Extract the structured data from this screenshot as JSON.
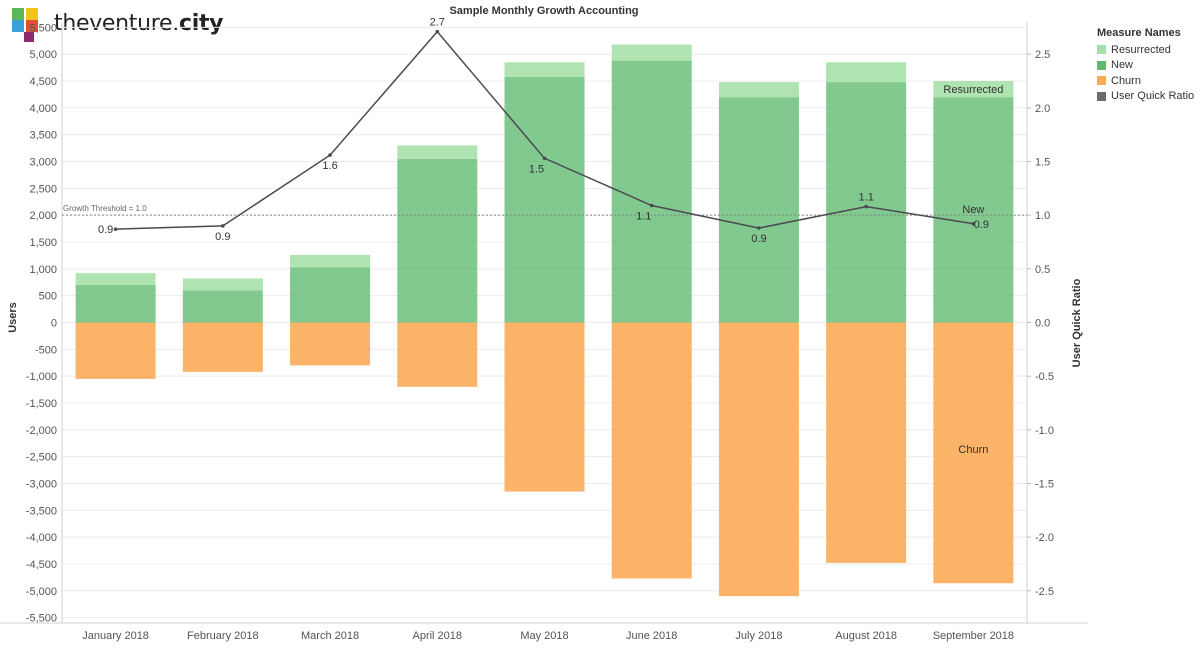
{
  "brand": {
    "name_prefix": "theventure.",
    "name_suffix": "city"
  },
  "chart_data": {
    "type": "bar",
    "title": "Sample Monthly Growth Accounting",
    "categories": [
      "January 2018",
      "February 2018",
      "March 2018",
      "April 2018",
      "May 2018",
      "June 2018",
      "July 2018",
      "August 2018",
      "September 2018"
    ],
    "series": [
      {
        "name": "New",
        "kind": "bar",
        "axis": "left",
        "color": "#5fba6f",
        "values": [
          700,
          600,
          1030,
          3050,
          4580,
          4880,
          4200,
          4480,
          4200
        ]
      },
      {
        "name": "Resurrected",
        "kind": "bar",
        "axis": "left",
        "color": "#a6e0a8",
        "values": [
          220,
          220,
          230,
          250,
          270,
          300,
          280,
          370,
          300
        ]
      },
      {
        "name": "Churn",
        "kind": "bar",
        "axis": "left",
        "color": "#fbab57",
        "values": [
          -1050,
          -920,
          -800,
          -1200,
          -3150,
          -4770,
          -5100,
          -4480,
          -4860
        ]
      },
      {
        "name": "User Quick Ratio",
        "kind": "line",
        "axis": "right",
        "color": "#4a4a52",
        "values": [
          0.87,
          0.9,
          1.56,
          2.71,
          1.53,
          1.09,
          0.88,
          1.08,
          0.92
        ],
        "labels": [
          "0.9",
          "0.9",
          "1.6",
          "2.7",
          "1.5",
          "1.1",
          "0.9",
          "1.1",
          "0.9"
        ]
      }
    ],
    "ylabel": "Users",
    "y2label": "User Quick Ratio",
    "ylim": [
      -5600,
      5600
    ],
    "y2lim": [
      -2.8,
      2.8
    ],
    "yticks": [
      5500,
      5000,
      4500,
      4000,
      3500,
      3000,
      2500,
      2000,
      1500,
      1000,
      500,
      0,
      -500,
      -1000,
      -1500,
      -2000,
      -2500,
      -3000,
      -3500,
      -4000,
      -4500,
      -5000,
      -5500
    ],
    "ytick_labels": [
      "5,500",
      "5,000",
      "4,500",
      "4,000",
      "3,500",
      "3,000",
      "2,500",
      "2,000",
      "1,500",
      "1,000",
      "500",
      "0",
      "-500",
      "-1,000",
      "-1,500",
      "-2,000",
      "-2,500",
      "-3,000",
      "-3,500",
      "-4,000",
      "-4,500",
      "-5,000",
      "-5,500"
    ],
    "y2ticks": [
      2.5,
      2.0,
      1.5,
      1.0,
      0.5,
      0.0,
      -0.5,
      -1.0,
      -1.5,
      -2.0,
      -2.5
    ],
    "y2tick_labels": [
      "2.5",
      "2.0",
      "1.5",
      "1.0",
      "0.5",
      "0.0",
      "-0.5",
      "-1.0",
      "-1.5",
      "-2.0",
      "-2.5"
    ],
    "reference_line": {
      "label": "Growth Threshold = 1.0",
      "value": 1.0,
      "axis": "right"
    },
    "annotations": [
      {
        "text": "Resurrected",
        "category": "September 2018",
        "series": "Resurrected"
      },
      {
        "text": "New",
        "category": "September 2018",
        "series": "New"
      },
      {
        "text": "Churn",
        "category": "September 2018",
        "series": "Churn"
      }
    ],
    "legend": {
      "title": "Measure Names",
      "position": "right",
      "items": [
        {
          "label": "Resurrected",
          "color": "#a6e0a8"
        },
        {
          "label": "New",
          "color": "#5fba6f"
        },
        {
          "label": "Churn",
          "color": "#fbab57"
        },
        {
          "label": "User Quick Ratio",
          "color": "#6b6b73"
        }
      ]
    },
    "grid": true
  }
}
